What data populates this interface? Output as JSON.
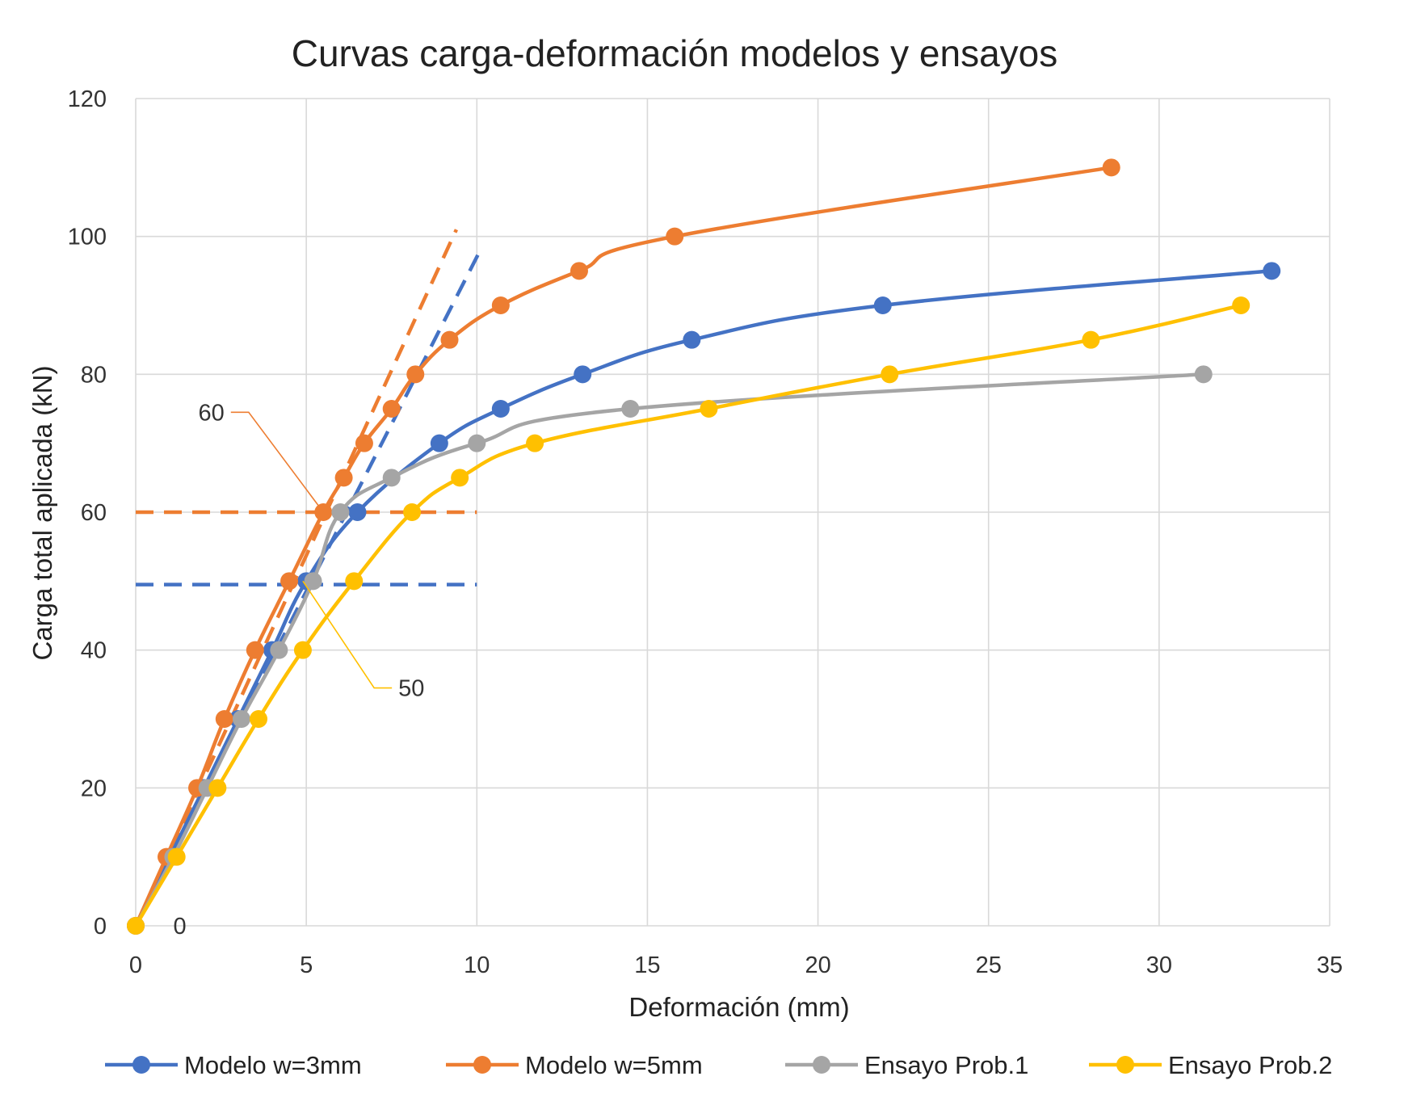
{
  "chart_data": {
    "type": "line",
    "title": "Curvas carga-deformación modelos y ensayos",
    "xlabel": "Deformación (mm)",
    "ylabel": "Carga total aplicada (kN)",
    "xlim": [
      0,
      35
    ],
    "ylim": [
      0,
      120
    ],
    "xticks": [
      0,
      5,
      10,
      15,
      20,
      25,
      30,
      35
    ],
    "yticks": [
      0,
      20,
      40,
      60,
      80,
      100,
      120
    ],
    "grid": true,
    "legend_position": "bottom",
    "series": [
      {
        "name": "Modelo w=3mm",
        "color": "#4472C4",
        "points": [
          [
            0,
            0
          ],
          [
            1,
            10
          ],
          [
            2,
            20
          ],
          [
            3,
            30
          ],
          [
            4,
            40
          ],
          [
            5,
            50
          ],
          [
            6.5,
            60
          ],
          [
            8.9,
            70
          ],
          [
            10.7,
            75
          ],
          [
            13.1,
            80
          ],
          [
            16.3,
            85
          ],
          [
            21.9,
            90
          ],
          [
            33.3,
            95
          ]
        ]
      },
      {
        "name": "Modelo w=5mm",
        "color": "#ED7D31",
        "points": [
          [
            0,
            0
          ],
          [
            0.9,
            10
          ],
          [
            1.8,
            20
          ],
          [
            2.6,
            30
          ],
          [
            3.5,
            40
          ],
          [
            4.5,
            50
          ],
          [
            5.5,
            60
          ],
          [
            6.1,
            65
          ],
          [
            6.7,
            70
          ],
          [
            7.5,
            75
          ],
          [
            8.2,
            80
          ],
          [
            9.2,
            85
          ],
          [
            10.7,
            90
          ],
          [
            13,
            95
          ],
          [
            15.8,
            100
          ],
          [
            28.6,
            110
          ]
        ]
      },
      {
        "name": "Ensayo Prob.1",
        "color": "#A5A5A5",
        "points": [
          [
            0,
            0
          ],
          [
            1.1,
            10
          ],
          [
            2.1,
            20
          ],
          [
            3.1,
            30
          ],
          [
            4.2,
            40
          ],
          [
            5.2,
            50
          ],
          [
            6,
            60
          ],
          [
            7.5,
            65
          ],
          [
            10,
            70
          ],
          [
            14.5,
            75
          ],
          [
            31.3,
            80
          ]
        ]
      },
      {
        "name": "Ensayo Prob.2",
        "color": "#FFC000",
        "points": [
          [
            0,
            0
          ],
          [
            1.2,
            10
          ],
          [
            2.4,
            20
          ],
          [
            3.6,
            30
          ],
          [
            4.9,
            40
          ],
          [
            6.4,
            50
          ],
          [
            8.1,
            60
          ],
          [
            9.5,
            65
          ],
          [
            11.7,
            70
          ],
          [
            16.8,
            75
          ],
          [
            22.1,
            80
          ],
          [
            28,
            85
          ],
          [
            32.4,
            90
          ]
        ]
      }
    ],
    "reference_lines": [
      {
        "color": "#ED7D31",
        "from": [
          0,
          60
        ],
        "to": [
          10,
          60
        ]
      },
      {
        "color": "#4472C4",
        "from": [
          0,
          49.5
        ],
        "to": [
          10,
          49.5
        ]
      },
      {
        "color": "#ED7D31",
        "from": [
          0,
          0
        ],
        "to": [
          9.4,
          101
        ]
      },
      {
        "color": "#4472C4",
        "from": [
          0,
          0
        ],
        "to": [
          10.1,
          98
        ]
      }
    ],
    "annotations": [
      {
        "text": "60",
        "color": "#ED7D31",
        "target": [
          5.5,
          60
        ],
        "label_at": [
          2.6,
          74.5
        ]
      },
      {
        "text": "50",
        "color": "#FFC000",
        "target": [
          4.9,
          50
        ],
        "label_at": [
          7.7,
          34.5
        ]
      },
      {
        "text": "0",
        "color": "#A5A5A5",
        "target": [
          0,
          0
        ],
        "label_at": [
          1.1,
          0
        ]
      }
    ]
  }
}
